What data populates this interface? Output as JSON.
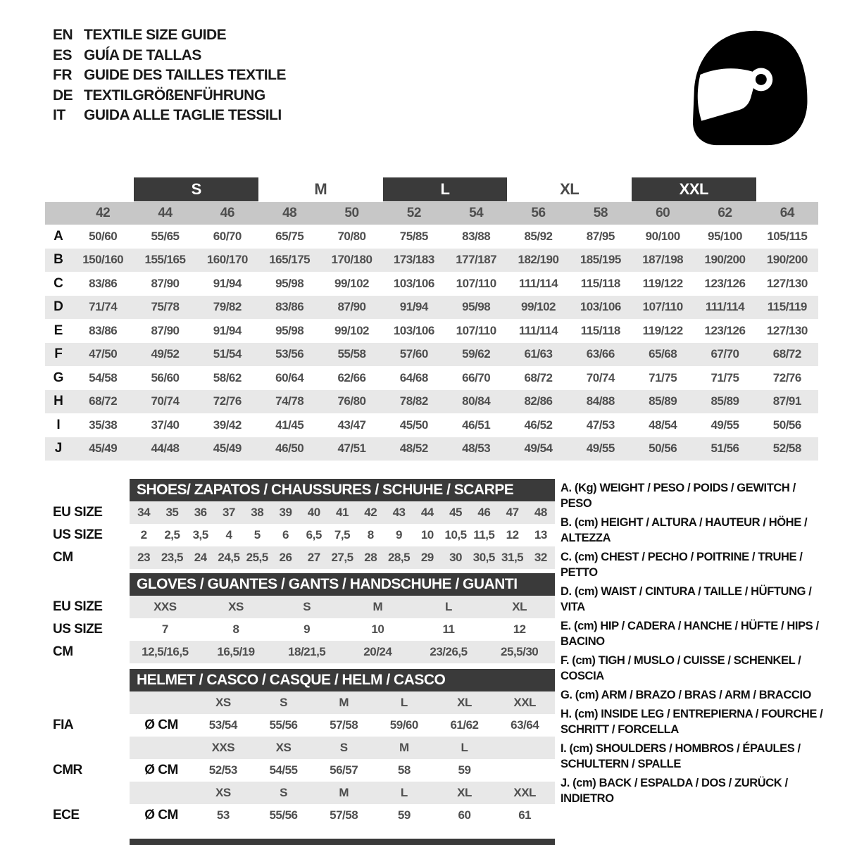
{
  "languages": [
    {
      "code": "EN",
      "label": "TEXTILE SIZE GUIDE"
    },
    {
      "code": "ES",
      "label": "GUÍA DE TALLAS"
    },
    {
      "code": "FR",
      "label": "GUIDE DES TAILLES TEXTILE"
    },
    {
      "code": "DE",
      "label": "TEXTILGRÖßENFÜHRUNG"
    },
    {
      "code": "IT",
      "label": "GUIDA ALLE TAGLIE TESSILI"
    }
  ],
  "helmet_icon": "full-face-racing-helmet",
  "colors": {
    "dark_bar": "#3a3a3a",
    "size_band": "#c7c7c7",
    "row_alt": "#e8e8e8",
    "text_values": "#4f4f4f"
  },
  "main_table": {
    "size_groups": [
      {
        "label": "S",
        "dark": true
      },
      {
        "label": "M",
        "dark": false
      },
      {
        "label": "L",
        "dark": true
      },
      {
        "label": "XL",
        "dark": false
      },
      {
        "label": "XXL",
        "dark": true
      }
    ],
    "sizes": [
      "42",
      "44",
      "46",
      "48",
      "50",
      "52",
      "54",
      "56",
      "58",
      "60",
      "62",
      "64"
    ],
    "rows": [
      {
        "letter": "A",
        "values": [
          "50/60",
          "55/65",
          "60/70",
          "65/75",
          "70/80",
          "75/85",
          "83/88",
          "85/92",
          "87/95",
          "90/100",
          "95/100",
          "105/115"
        ]
      },
      {
        "letter": "B",
        "values": [
          "150/160",
          "155/165",
          "160/170",
          "165/175",
          "170/180",
          "173/183",
          "177/187",
          "182/190",
          "185/195",
          "187/198",
          "190/200",
          "190/200"
        ]
      },
      {
        "letter": "C",
        "values": [
          "83/86",
          "87/90",
          "91/94",
          "95/98",
          "99/102",
          "103/106",
          "107/110",
          "111/114",
          "115/118",
          "119/122",
          "123/126",
          "127/130"
        ]
      },
      {
        "letter": "D",
        "values": [
          "71/74",
          "75/78",
          "79/82",
          "83/86",
          "87/90",
          "91/94",
          "95/98",
          "99/102",
          "103/106",
          "107/110",
          "111/114",
          "115/119"
        ]
      },
      {
        "letter": "E",
        "values": [
          "83/86",
          "87/90",
          "91/94",
          "95/98",
          "99/102",
          "103/106",
          "107/110",
          "111/114",
          "115/118",
          "119/122",
          "123/126",
          "127/130"
        ]
      },
      {
        "letter": "F",
        "values": [
          "47/50",
          "49/52",
          "51/54",
          "53/56",
          "55/58",
          "57/60",
          "59/62",
          "61/63",
          "63/66",
          "65/68",
          "67/70",
          "68/72"
        ]
      },
      {
        "letter": "G",
        "values": [
          "54/58",
          "56/60",
          "58/62",
          "60/64",
          "62/66",
          "64/68",
          "66/70",
          "68/72",
          "70/74",
          "71/75",
          "71/75",
          "72/76"
        ]
      },
      {
        "letter": "H",
        "values": [
          "68/72",
          "70/74",
          "72/76",
          "74/78",
          "76/80",
          "78/82",
          "80/84",
          "82/86",
          "84/88",
          "85/89",
          "85/89",
          "87/91"
        ]
      },
      {
        "letter": "I",
        "values": [
          "35/38",
          "37/40",
          "39/42",
          "41/45",
          "43/47",
          "45/50",
          "46/51",
          "46/52",
          "47/53",
          "48/54",
          "49/55",
          "50/56"
        ]
      },
      {
        "letter": "J",
        "values": [
          "45/49",
          "44/48",
          "45/49",
          "46/50",
          "47/51",
          "48/52",
          "48/53",
          "49/54",
          "49/55",
          "50/56",
          "51/56",
          "52/58"
        ]
      }
    ]
  },
  "shoes": {
    "title": "SHOES/ ZAPATOS / CHAUSSURES / SCHUHE / SCARPE",
    "eu_label": "EU SIZE",
    "us_label": "US SIZE",
    "cm_label": "CM",
    "eu": [
      "34",
      "35",
      "36",
      "37",
      "38",
      "39",
      "40",
      "41",
      "42",
      "43",
      "44",
      "45",
      "46",
      "47",
      "48"
    ],
    "us": [
      "2",
      "2,5",
      "3,5",
      "4",
      "5",
      "6",
      "6,5",
      "7,5",
      "8",
      "9",
      "10",
      "10,5",
      "11,5",
      "12",
      "13"
    ],
    "cm": [
      "23",
      "23,5",
      "24",
      "24,5",
      "25,5",
      "26",
      "27",
      "27,5",
      "28",
      "28,5",
      "29",
      "30",
      "30,5",
      "31,5",
      "32"
    ]
  },
  "gloves": {
    "title": "GLOVES / GUANTES / GANTS / HANDSCHUHE / GUANTI",
    "eu_label": "EU SIZE",
    "us_label": "US SIZE",
    "cm_label": "CM",
    "eu": [
      "XXS",
      "XS",
      "S",
      "M",
      "L",
      "XL"
    ],
    "us": [
      "7",
      "8",
      "9",
      "10",
      "11",
      "12"
    ],
    "cm": [
      "12,5/16,5",
      "16,5/19",
      "18/21,5",
      "20/24",
      "23/26,5",
      "25,5/30"
    ]
  },
  "helmet": {
    "title": "HELMET / CASCO / CASQUE / HELM / CASCO",
    "groups": [
      {
        "label": "FIA",
        "diameter": "Ø CM",
        "sizes": [
          "XS",
          "S",
          "M",
          "L",
          "XL",
          "XXL"
        ],
        "values": [
          "53/54",
          "55/56",
          "57/58",
          "59/60",
          "61/62",
          "63/64"
        ]
      },
      {
        "label": "CMR",
        "diameter": "Ø CM",
        "sizes": [
          "XXS",
          "XS",
          "S",
          "M",
          "L",
          ""
        ],
        "values": [
          "52/53",
          "54/55",
          "56/57",
          "58",
          "59",
          ""
        ]
      },
      {
        "label": "ECE",
        "diameter": "Ø CM",
        "sizes": [
          "XS",
          "S",
          "M",
          "L",
          "XL",
          "XXL"
        ],
        "values": [
          "53",
          "55/56",
          "57/58",
          "59",
          "60",
          "61"
        ]
      }
    ]
  },
  "legend": [
    {
      "key": "A.",
      "unit": "(Kg)",
      "text": "WEIGHT / PESO / POIDS / GEWITCH / PESO"
    },
    {
      "key": "B.",
      "unit": "(cm)",
      "text": "HEIGHT / ALTURA / HAUTEUR / HÖHE / ALTEZZA"
    },
    {
      "key": "C.",
      "unit": "(cm)",
      "text": "CHEST / PECHO / POITRINE / TRUHE / PETTO"
    },
    {
      "key": "D.",
      "unit": "(cm)",
      "text": "WAIST / CINTURA / TAILLE / HÜFTUNG / VITA"
    },
    {
      "key": "E.",
      "unit": "(cm)",
      "text": "HIP / CADERA / HANCHE / HÜFTE / HIPS / BACINO"
    },
    {
      "key": "F.",
      "unit": "(cm)",
      "text": "TIGH / MUSLO / CUISSE / SCHENKEL / COSCIA"
    },
    {
      "key": "G.",
      "unit": "(cm)",
      "text": "ARM / BRAZO / BRAS / ARM / BRACCIO"
    },
    {
      "key": "H.",
      "unit": "(cm)",
      "text": "INSIDE LEG / ENTREPIERNA / FOURCHE / SCHRITT / FORCELLA"
    },
    {
      "key": "I.",
      "unit": "(cm)",
      "text": "SHOULDERS / HOMBROS / ÉPAULES / SCHULTERN / SPALLE"
    },
    {
      "key": "J.",
      "unit": "(cm)",
      "text": "BACK / ESPALDA / DOS / ZURÜCK / INDIETRO"
    }
  ]
}
